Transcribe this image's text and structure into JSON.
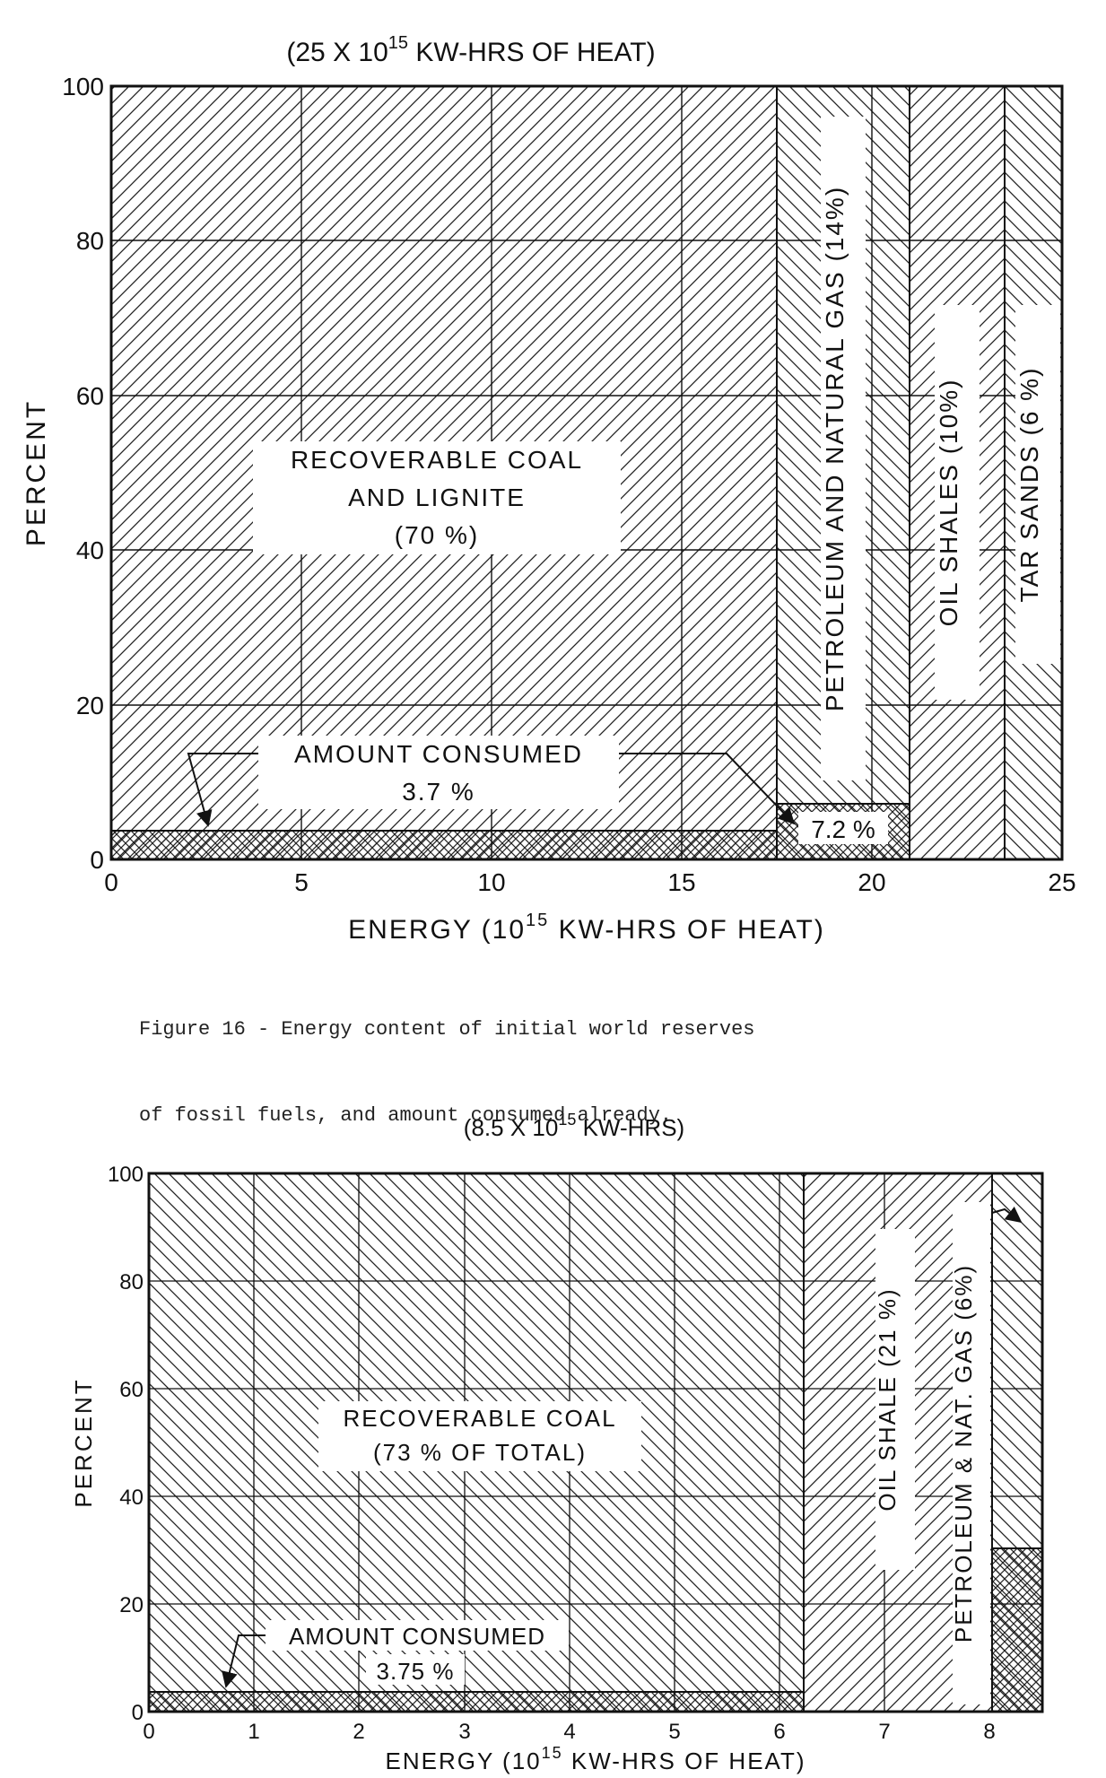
{
  "charts": [
    {
      "type": "area",
      "top_label": "(25 X 10",
      "top_label_exp": "15",
      "top_label_tail": " KW-HRS OF HEAT)",
      "xlabel": "ENERGY (10",
      "xlabel_exp": "15",
      "xlabel_tail": " KW-HRS OF HEAT)",
      "ylabel": "PERCENT",
      "xlim": [
        0,
        25
      ],
      "ylim": [
        0,
        100
      ],
      "xticks": [
        "0",
        "5",
        "10",
        "15",
        "20",
        "25"
      ],
      "yticks": [
        "0",
        "20",
        "40",
        "60",
        "80",
        "100"
      ],
      "grid": true,
      "segments": [
        {
          "name": "RECOVERABLE COAL AND LIGNITE (70 %)",
          "x_start": 0,
          "x_end": 17.5,
          "consumed_pct": 3.7
        },
        {
          "name": "PETROLEUM AND NATURAL GAS (14%)",
          "x_start": 17.5,
          "x_end": 21,
          "consumed_pct": 7.2
        },
        {
          "name": "OIL SHALES (10%)",
          "x_start": 21,
          "x_end": 23.5,
          "consumed_pct": 0
        },
        {
          "name": "TAR SANDS (6 %)",
          "x_start": 23.5,
          "x_end": 25,
          "consumed_pct": 0
        }
      ],
      "labels": {
        "coal_1": "RECOVERABLE COAL",
        "coal_2": "AND LIGNITE",
        "coal_3": "(70 %)",
        "consumed_1": "AMOUNT CONSUMED",
        "consumed_2": "3.7 %",
        "petro_consumed": "7.2 %",
        "petro": "PETROLEUM AND NATURAL GAS (14%)",
        "shales": "OIL SHALES (10%)",
        "tar": "TAR SANDS (6 %)"
      }
    },
    {
      "type": "area",
      "top_label": "(8.5 X 10",
      "top_label_exp": "15",
      "top_label_tail": " KW-HRS)",
      "xlabel": "ENERGY (10",
      "xlabel_exp": "15",
      "xlabel_tail": " KW-HRS OF HEAT)",
      "ylabel": "PERCENT",
      "xlim": [
        0,
        8.5
      ],
      "ylim": [
        0,
        100
      ],
      "xticks": [
        "0",
        "1",
        "2",
        "3",
        "4",
        "5",
        "6",
        "7",
        "8"
      ],
      "yticks": [
        "0",
        "20",
        "40",
        "60",
        "80",
        "100"
      ],
      "grid": true,
      "segments": [
        {
          "name": "RECOVERABLE COAL (73 % OF TOTAL)",
          "x_start": 0,
          "x_end": 6.25,
          "consumed_pct": 3.75
        },
        {
          "name": "OIL SHALE (21 %)",
          "x_start": 6.25,
          "x_end": 8.0,
          "consumed_pct": 0
        },
        {
          "name": "PETROLEUM & NAT. GAS (6%)",
          "x_start": 8.0,
          "x_end": 8.5,
          "consumed_pct": 28
        }
      ],
      "labels": {
        "coal_1": "RECOVERABLE COAL",
        "coal_2": "(73 % OF TOTAL)",
        "consumed_1": "AMOUNT CONSUMED",
        "consumed_2": "3.75 %",
        "shale": "OIL SHALE (21 %)",
        "petro": "PETROLEUM & NAT. GAS (6%)"
      }
    }
  ],
  "caption": {
    "line1": "Figure 16 - Energy content of initial world reserves",
    "line2": "of fossil fuels, and amount consumed already."
  }
}
